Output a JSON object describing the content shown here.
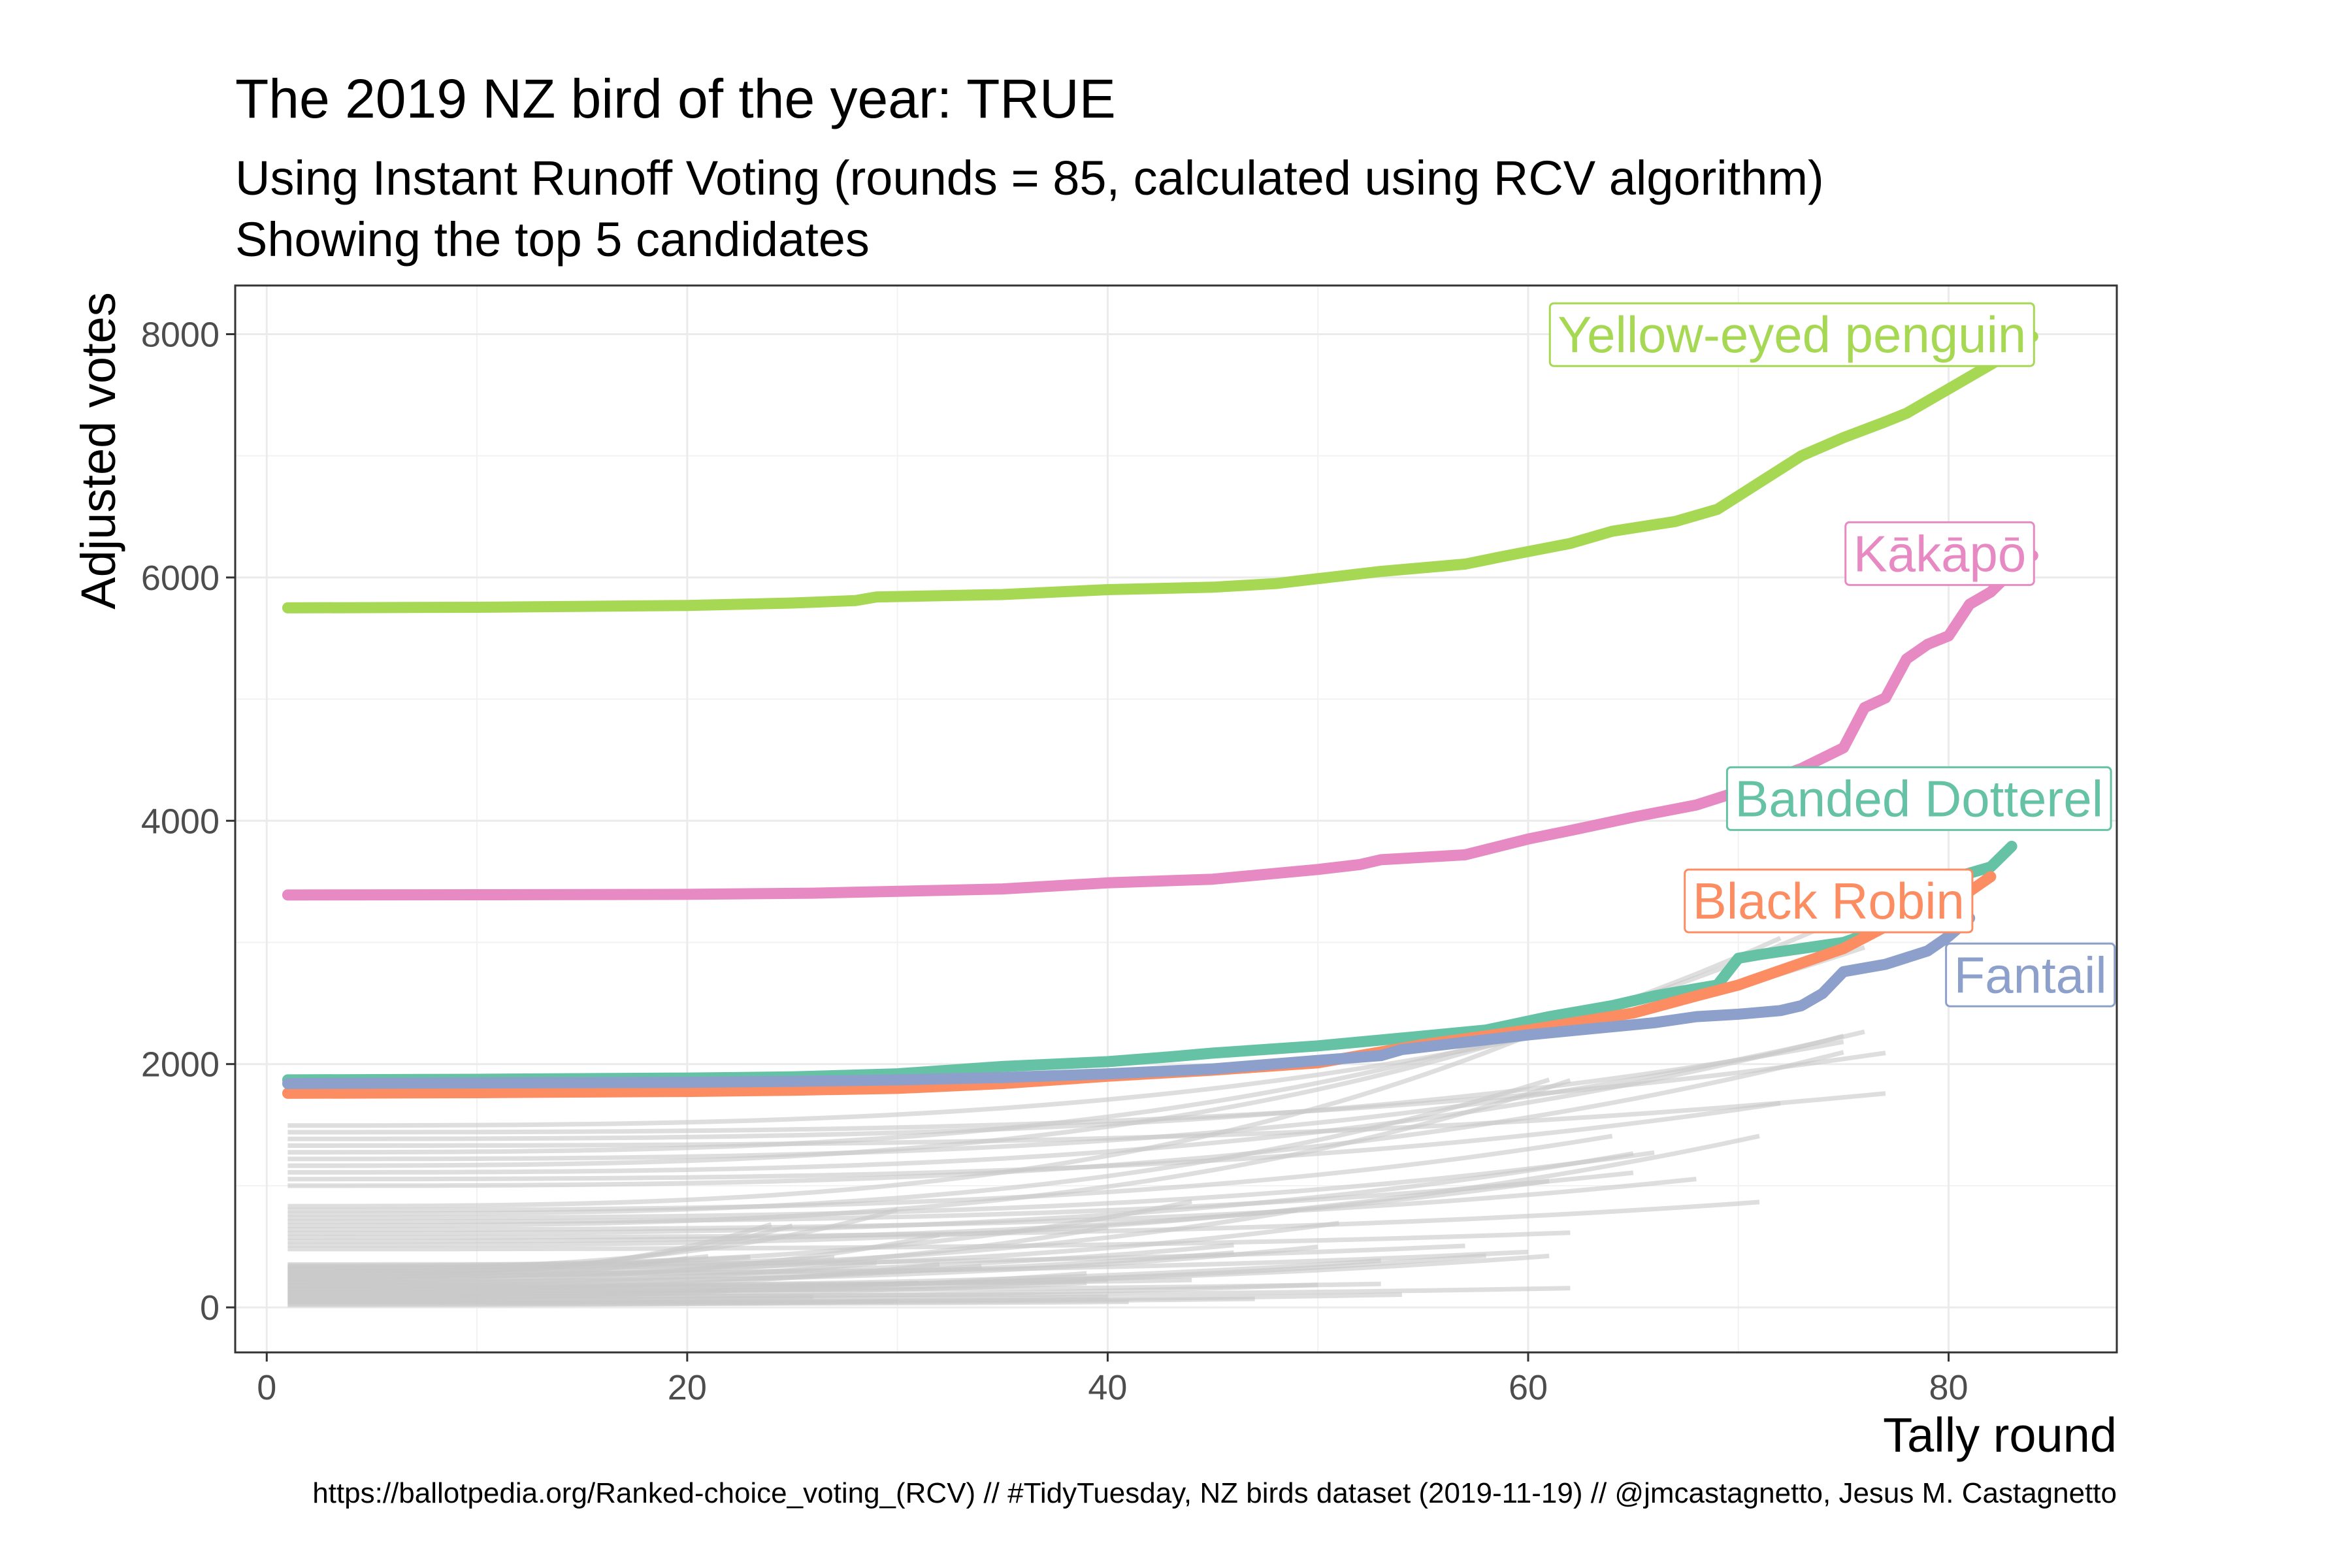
{
  "chart_data": {
    "type": "line",
    "title": "The 2019 NZ bird of the year: TRUE",
    "subtitle_lines": [
      "Using Instant Runoff Voting (rounds = 85, calculated using RCV algorithm)",
      "Showing the top 5 candidates"
    ],
    "caption": "https://ballotpedia.org/Ranked-choice_voting_(RCV) // #TidyTuesday, NZ birds dataset (2019-11-19) // @jmcastagnetto, Jesus M. Castagnetto",
    "xlabel": "Tally round",
    "ylabel": "Adjusted votes",
    "xlim": [
      -1.5,
      88
    ],
    "ylim": [
      -370,
      8400
    ],
    "xticks": [
      0,
      20,
      40,
      60,
      80
    ],
    "yticks": [
      0,
      2000,
      4000,
      6000,
      8000
    ],
    "grid": true,
    "series": [
      {
        "name": "Yellow-eyed penguin",
        "color": "#a6d854",
        "x": [
          1,
          10,
          20,
          25,
          28,
          29,
          35,
          40,
          45,
          48,
          50,
          53,
          55,
          57,
          59,
          62,
          64,
          67,
          69,
          71,
          73,
          75,
          77,
          78,
          80,
          82,
          83,
          84
        ],
        "y": [
          5750,
          5755,
          5770,
          5790,
          5810,
          5840,
          5860,
          5900,
          5920,
          5950,
          5990,
          6050,
          6080,
          6110,
          6180,
          6280,
          6380,
          6460,
          6560,
          6780,
          7000,
          7150,
          7280,
          7350,
          7550,
          7750,
          7850,
          7980
        ]
      },
      {
        "name": "Kākāpō",
        "color": "#e78ac3",
        "x": [
          1,
          10,
          20,
          26,
          30,
          35,
          40,
          45,
          50,
          52,
          53,
          57,
          60,
          62,
          65,
          68,
          70,
          73,
          75,
          76,
          77,
          78,
          79,
          80,
          81,
          82,
          83,
          84
        ],
        "y": [
          3390,
          3392,
          3395,
          3405,
          3420,
          3440,
          3490,
          3520,
          3600,
          3640,
          3680,
          3720,
          3850,
          3920,
          4030,
          4130,
          4240,
          4430,
          4600,
          4930,
          5010,
          5330,
          5450,
          5520,
          5780,
          5880,
          6050,
          6180
        ]
      },
      {
        "name": "Banded Dotterel",
        "color": "#66c2a5",
        "x": [
          1,
          10,
          20,
          25,
          30,
          35,
          40,
          43,
          45,
          50,
          55,
          58,
          61,
          64,
          66,
          68,
          69,
          70,
          71,
          73,
          75,
          76,
          77,
          78,
          80,
          82,
          83
        ],
        "y": [
          1870,
          1875,
          1885,
          1895,
          1920,
          1980,
          2020,
          2060,
          2090,
          2150,
          2230,
          2280,
          2390,
          2480,
          2560,
          2620,
          2650,
          2870,
          2900,
          2950,
          3000,
          3060,
          3310,
          3420,
          3520,
          3620,
          3790
        ]
      },
      {
        "name": "Black Robin",
        "color": "#fc8d62",
        "x": [
          1,
          10,
          20,
          25,
          30,
          35,
          40,
          45,
          50,
          55,
          60,
          65,
          68,
          70,
          72,
          75,
          77,
          79,
          81,
          82
        ],
        "y": [
          1760,
          1765,
          1775,
          1785,
          1800,
          1840,
          1900,
          1950,
          2010,
          2160,
          2280,
          2420,
          2560,
          2650,
          2770,
          2950,
          3130,
          3250,
          3420,
          3540
        ]
      },
      {
        "name": "Fantail",
        "color": "#8da0cb",
        "x": [
          1,
          10,
          20,
          25,
          30,
          35,
          40,
          45,
          50,
          53,
          54,
          57,
          60,
          63,
          66,
          68,
          70,
          72,
          73,
          74,
          75,
          77,
          79,
          80,
          81
        ],
        "y": [
          1840,
          1845,
          1850,
          1858,
          1870,
          1890,
          1920,
          1960,
          2030,
          2070,
          2120,
          2180,
          2240,
          2290,
          2340,
          2390,
          2410,
          2440,
          2480,
          2580,
          2760,
          2820,
          2930,
          3050,
          3200
        ]
      }
    ]
  }
}
